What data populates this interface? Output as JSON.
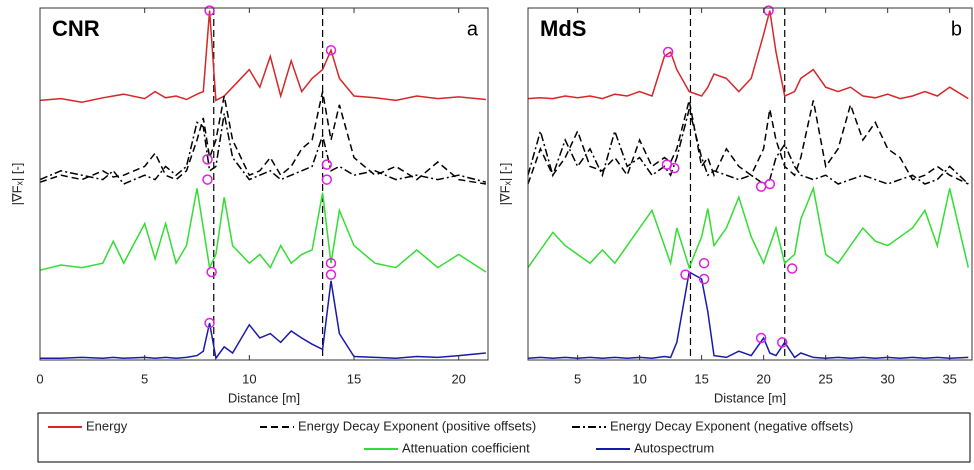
{
  "chart_data": [
    {
      "type": "line",
      "title": "CNR",
      "panel_label": "a",
      "xlabel": "Distance [m]",
      "ylabel": "|∇Fₓ| [-]",
      "xlim": [
        0,
        21.4
      ],
      "xticks": [
        0,
        5,
        10,
        15,
        20
      ],
      "ylim": [
        0,
        4
      ],
      "x": [
        0,
        1,
        2,
        3,
        3.5,
        4,
        5,
        5.5,
        6,
        6.5,
        7,
        7.5,
        7.8,
        8.1,
        8.4,
        8.8,
        9.2,
        10,
        10.5,
        11,
        11.5,
        12,
        12.5,
        13,
        13.5,
        13.9,
        14.3,
        15,
        16,
        17,
        18,
        19,
        20,
        21.3
      ],
      "series": [
        {
          "name": "Energy",
          "color": "#d62728",
          "dash": "solid",
          "values": [
            2.95,
            2.97,
            2.93,
            2.98,
            3.0,
            3.02,
            2.97,
            3.05,
            2.98,
            3.0,
            2.96,
            3.02,
            3.05,
            3.97,
            2.95,
            3.0,
            3.1,
            3.3,
            3.1,
            3.45,
            3.0,
            3.4,
            3.05,
            3.2,
            3.3,
            3.52,
            3.2,
            3.0,
            2.98,
            2.95,
            3.0,
            2.97,
            2.99,
            2.96
          ]
        },
        {
          "name": "Energy Decay Exponent (positive offsets)",
          "color": "#000000",
          "dash": "dashed",
          "values": [
            2.02,
            2.1,
            2.05,
            2.15,
            2.08,
            2.1,
            2.2,
            2.35,
            2.1,
            2.05,
            2.15,
            2.5,
            2.75,
            2.3,
            2.5,
            3.0,
            2.5,
            2.1,
            2.15,
            2.3,
            2.1,
            2.2,
            2.4,
            2.5,
            3.05,
            2.5,
            2.9,
            2.3,
            2.1,
            2.2,
            2.05,
            2.25,
            2.05,
            2.0
          ]
        },
        {
          "name": "Energy Decay Exponent (negative offsets)",
          "color": "#000000",
          "dash": "dashdot",
          "values": [
            2.05,
            2.15,
            2.1,
            2.05,
            2.15,
            2.0,
            2.1,
            2.05,
            2.2,
            2.1,
            2.2,
            2.7,
            2.65,
            2.15,
            2.2,
            2.8,
            2.3,
            2.05,
            2.1,
            2.15,
            2.05,
            2.1,
            2.15,
            2.2,
            2.55,
            2.15,
            2.2,
            2.1,
            2.15,
            2.05,
            2.1,
            2.05,
            2.1,
            2.02
          ]
        },
        {
          "name": "Attenuation coefficient",
          "color": "#33dd33",
          "dash": "solid",
          "values": [
            1.02,
            1.08,
            1.05,
            1.1,
            1.35,
            1.1,
            1.55,
            1.15,
            1.55,
            1.1,
            1.3,
            1.95,
            1.5,
            1.05,
            1.2,
            1.85,
            1.3,
            1.1,
            1.2,
            1.05,
            1.3,
            1.1,
            1.2,
            1.25,
            1.9,
            1.1,
            1.7,
            1.3,
            1.1,
            1.05,
            1.25,
            1.05,
            1.2,
            1.0
          ]
        },
        {
          "name": "Autospectrum",
          "color": "#1a1aaa",
          "dash": "solid",
          "values": [
            0.02,
            0.02,
            0.03,
            0.02,
            0.03,
            0.02,
            0.03,
            0.02,
            0.03,
            0.02,
            0.03,
            0.05,
            0.1,
            0.42,
            0.02,
            0.15,
            0.08,
            0.4,
            0.25,
            0.3,
            0.2,
            0.33,
            0.25,
            0.18,
            0.12,
            0.9,
            0.3,
            0.04,
            0.03,
            0.02,
            0.04,
            0.03,
            0.05,
            0.08
          ]
        }
      ],
      "vlines": [
        8.3,
        13.5
      ],
      "markers": {
        "color": "#e020e0",
        "x": [
          8.1,
          13.9,
          8.0,
          8.0,
          13.7,
          13.7,
          8.2,
          13.9,
          13.9,
          8.1
        ],
        "y": [
          3.97,
          3.52,
          2.28,
          2.05,
          2.22,
          2.05,
          1.0,
          1.1,
          0.97,
          0.42
        ]
      }
    },
    {
      "type": "line",
      "title": "MdS",
      "panel_label": "b",
      "xlabel": "Distance [m]",
      "ylabel": "|∇Fₓ| [-]",
      "xlim": [
        1,
        36.8
      ],
      "xticks": [
        5,
        10,
        15,
        20,
        25,
        30,
        35
      ],
      "ylim": [
        0,
        4
      ],
      "x": [
        1,
        2,
        3,
        4,
        5,
        6,
        7,
        8,
        9,
        10,
        11,
        12,
        12.5,
        13,
        14,
        15,
        15.5,
        16,
        17,
        18,
        19,
        20,
        20.5,
        21,
        21.7,
        22.5,
        23,
        24,
        25,
        26,
        27,
        28,
        29,
        30,
        31,
        32,
        33,
        34,
        35,
        36.5
      ],
      "series": [
        {
          "color": "#d62728",
          "dash": "solid",
          "values": [
            2.97,
            2.98,
            2.97,
            3.0,
            2.98,
            3.0,
            2.97,
            3.02,
            3.0,
            3.05,
            3.0,
            3.45,
            3.5,
            3.3,
            3.05,
            3.0,
            3.1,
            3.25,
            3.2,
            3.05,
            3.2,
            3.7,
            3.97,
            3.5,
            3.0,
            3.05,
            3.2,
            3.3,
            3.1,
            3.05,
            3.1,
            3.0,
            2.98,
            3.02,
            2.97,
            3.0,
            3.05,
            3.0,
            3.1,
            2.97
          ]
        },
        {
          "color": "#000000",
          "dash": "dashed",
          "values": [
            2.0,
            2.4,
            2.1,
            2.3,
            2.6,
            2.2,
            2.15,
            2.3,
            2.1,
            2.5,
            2.2,
            2.3,
            2.25,
            2.4,
            2.95,
            2.2,
            2.3,
            2.1,
            2.4,
            2.2,
            2.1,
            2.4,
            2.85,
            2.5,
            2.2,
            2.1,
            2.3,
            2.95,
            2.2,
            2.4,
            2.9,
            2.5,
            2.7,
            2.4,
            2.3,
            2.05,
            2.1,
            2.2,
            2.1,
            2.0
          ]
        },
        {
          "color": "#000000",
          "dash": "dashdot",
          "values": [
            2.1,
            2.6,
            2.1,
            2.5,
            2.2,
            2.4,
            2.1,
            2.6,
            2.2,
            2.3,
            2.1,
            2.2,
            2.1,
            2.3,
            2.85,
            2.3,
            2.1,
            2.15,
            2.1,
            2.05,
            2.1,
            2.0,
            2.05,
            2.3,
            2.45,
            2.2,
            2.1,
            2.05,
            2.1,
            2.0,
            2.05,
            2.1,
            2.05,
            2.0,
            2.05,
            2.1,
            2.0,
            2.05,
            2.2,
            2.0
          ]
        },
        {
          "color": "#33dd33",
          "dash": "solid",
          "values": [
            1.05,
            1.25,
            1.45,
            1.3,
            1.2,
            1.1,
            1.25,
            1.1,
            1.3,
            1.5,
            1.7,
            1.3,
            1.1,
            1.5,
            1.05,
            1.4,
            1.72,
            1.3,
            1.5,
            1.85,
            1.4,
            1.1,
            1.3,
            1.5,
            1.1,
            1.2,
            1.6,
            1.95,
            1.2,
            1.1,
            1.3,
            1.5,
            1.35,
            1.3,
            1.4,
            1.5,
            1.7,
            1.3,
            1.95,
            1.05
          ]
        },
        {
          "color": "#1a1aaa",
          "dash": "solid",
          "values": [
            0.02,
            0.03,
            0.02,
            0.03,
            0.02,
            0.03,
            0.02,
            0.03,
            0.02,
            0.03,
            0.02,
            0.04,
            0.03,
            0.2,
            1.0,
            0.92,
            0.55,
            0.05,
            0.03,
            0.1,
            0.05,
            0.25,
            0.08,
            0.05,
            0.2,
            0.03,
            0.08,
            0.03,
            0.02,
            0.03,
            0.02,
            0.03,
            0.02,
            0.03,
            0.02,
            0.03,
            0.02,
            0.03,
            0.02,
            0.03
          ]
        }
      ],
      "vlines": [
        14.1,
        21.7
      ],
      "markers": {
        "color": "#e020e0",
        "x": [
          20.4,
          12.3,
          12.2,
          12.8,
          19.8,
          20.5,
          13.7,
          15.2,
          15.2,
          22.3,
          19.8,
          21.5
        ],
        "y": [
          3.97,
          3.5,
          2.22,
          2.18,
          1.97,
          2.0,
          0.97,
          1.1,
          0.92,
          1.04,
          0.25,
          0.2
        ]
      }
    }
  ]
}
